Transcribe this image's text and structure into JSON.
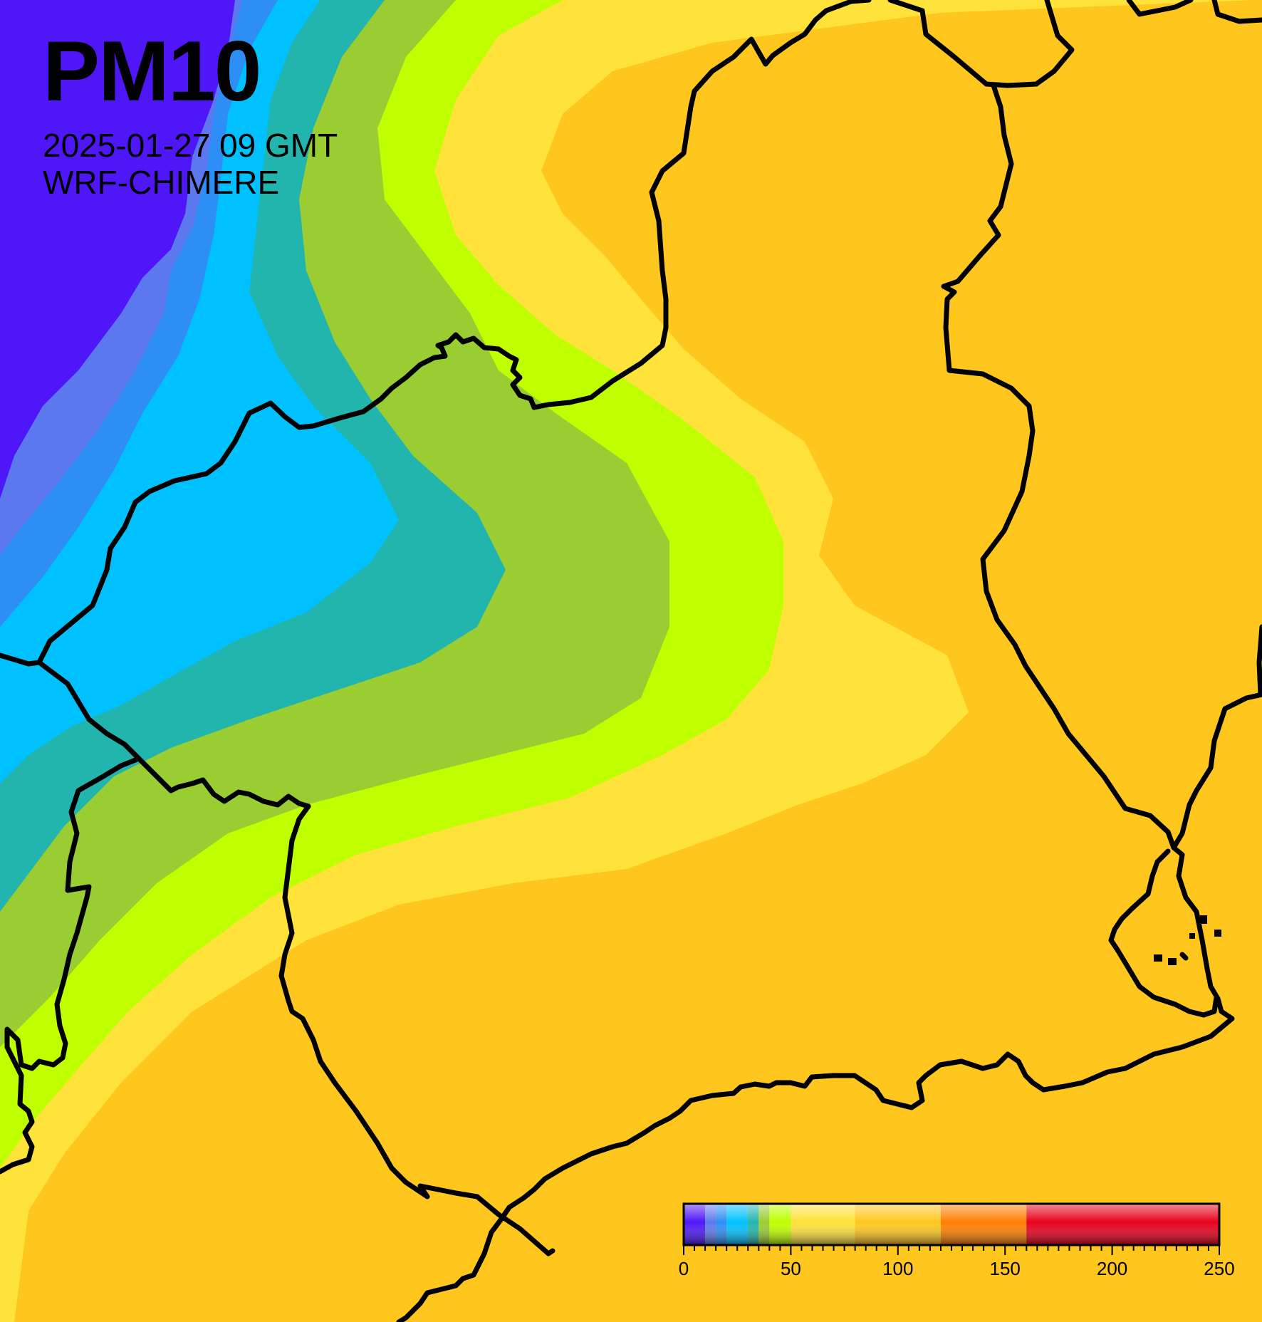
{
  "title": "PM10",
  "date_line": "2025-01-27 09 GMT",
  "model": "WRF-CHIMERE",
  "colorbar": {
    "min": 0,
    "max": 250,
    "labels": [
      "0",
      "50",
      "100",
      "150",
      "200",
      "250"
    ],
    "label_values": [
      0,
      50,
      100,
      150,
      200,
      250
    ],
    "minor_step": 10,
    "segments": [
      {
        "from": 0,
        "to": 10,
        "color": "#4f16f8"
      },
      {
        "from": 10,
        "to": 15,
        "color": "#5c78ee"
      },
      {
        "from": 15,
        "to": 20,
        "color": "#2d8ef6"
      },
      {
        "from": 20,
        "to": 30,
        "color": "#00c1ff"
      },
      {
        "from": 30,
        "to": 35,
        "color": "#22b5ae"
      },
      {
        "from": 35,
        "to": 40,
        "color": "#9acd32"
      },
      {
        "from": 40,
        "to": 50,
        "color": "#bfff00"
      },
      {
        "from": 50,
        "to": 80,
        "color": "#ffe23a"
      },
      {
        "from": 80,
        "to": 120,
        "color": "#ffc61e"
      },
      {
        "from": 120,
        "to": 160,
        "color": "#ff7f00"
      },
      {
        "from": 160,
        "to": 250,
        "color": "#e8001c"
      }
    ]
  },
  "map_colors": {
    "c1": "#4f16f8",
    "c2": "#5c78ee",
    "c3": "#2d8ef6",
    "c4": "#00c1ff",
    "c5": "#22b5ae",
    "c6": "#9acd32",
    "c7": "#bfff00",
    "c8": "#ffe23a",
    "c9": "#ffc61e",
    "border": "#000000"
  }
}
